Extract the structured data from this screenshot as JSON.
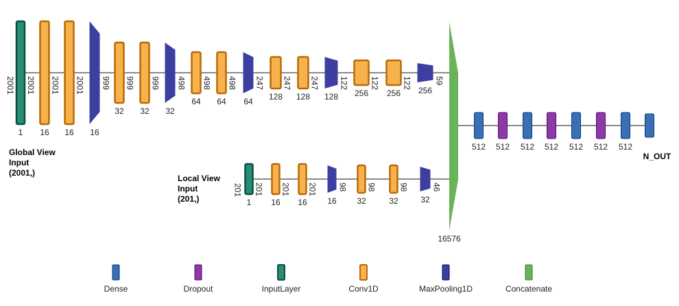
{
  "colors": {
    "dense": "#3b6fb3",
    "dropout": "#8e3aa6",
    "input": "#2e8b76",
    "conv": "#f0a03a",
    "pool": "#3c3fa0",
    "concat": "#6ab35a"
  },
  "global_branch": {
    "title_lines": [
      "Global View",
      "Input",
      "(2001,)"
    ],
    "layers": [
      {
        "type": "input",
        "side": "2001",
        "dim": "2001",
        "bottom": "1"
      },
      {
        "type": "conv",
        "dim": "2001",
        "bottom": "16"
      },
      {
        "type": "conv",
        "dim": "2001",
        "bottom": "16"
      },
      {
        "type": "pool",
        "dim": "999",
        "bottom": "16"
      },
      {
        "type": "conv",
        "dim": "999",
        "bottom": "32"
      },
      {
        "type": "conv",
        "dim": "999",
        "bottom": "32"
      },
      {
        "type": "pool",
        "dim": "498",
        "bottom": "32"
      },
      {
        "type": "conv",
        "dim": "498",
        "bottom": "64"
      },
      {
        "type": "conv",
        "dim": "498",
        "bottom": "64"
      },
      {
        "type": "pool",
        "dim": "247",
        "bottom": "64"
      },
      {
        "type": "conv",
        "dim": "247",
        "bottom": "128"
      },
      {
        "type": "conv",
        "dim": "247",
        "bottom": "128"
      },
      {
        "type": "pool",
        "dim": "122",
        "bottom": "128"
      },
      {
        "type": "conv",
        "dim": "122",
        "bottom": "256"
      },
      {
        "type": "conv",
        "dim": "122",
        "bottom": "256"
      },
      {
        "type": "pool",
        "dim": "59",
        "bottom": "256"
      }
    ]
  },
  "local_branch": {
    "title_lines": [
      "Local View",
      "Input",
      "(201,)"
    ],
    "layers": [
      {
        "type": "input",
        "side": "201",
        "dim": "201",
        "bottom": "1"
      },
      {
        "type": "conv",
        "dim": "201",
        "bottom": "16"
      },
      {
        "type": "conv",
        "dim": "201",
        "bottom": "16"
      },
      {
        "type": "pool",
        "dim": "98",
        "bottom": "16"
      },
      {
        "type": "conv",
        "dim": "98",
        "bottom": "32"
      },
      {
        "type": "conv",
        "dim": "98",
        "bottom": "32"
      },
      {
        "type": "pool",
        "dim": "46",
        "bottom": "32"
      }
    ]
  },
  "concat": {
    "label": "16576"
  },
  "dense_stack": {
    "layers": [
      {
        "type": "dense",
        "label": "512"
      },
      {
        "type": "dropout",
        "label": "512"
      },
      {
        "type": "dense",
        "label": "512"
      },
      {
        "type": "dropout",
        "label": "512"
      },
      {
        "type": "dense",
        "label": "512"
      },
      {
        "type": "dropout",
        "label": "512"
      },
      {
        "type": "dense",
        "label": "512"
      },
      {
        "type": "dense",
        "label": ""
      }
    ],
    "output_label": "N_OUT"
  },
  "legend": [
    {
      "type": "dense",
      "label": "Dense"
    },
    {
      "type": "dropout",
      "label": "Dropout"
    },
    {
      "type": "input",
      "label": "InputLayer"
    },
    {
      "type": "conv",
      "label": "Conv1D"
    },
    {
      "type": "pool",
      "label": "MaxPooling1D"
    },
    {
      "type": "concat",
      "label": "Concatenate"
    }
  ]
}
